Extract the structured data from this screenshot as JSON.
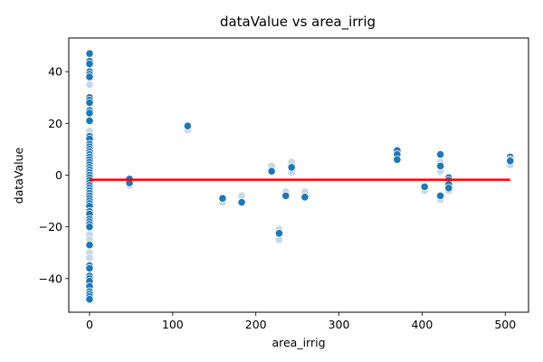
{
  "chart_data": {
    "type": "scatter",
    "title": "dataValue vs area_irrig",
    "xlabel": "area_irrig",
    "ylabel": "dataValue",
    "xlim": [
      -25,
      528
    ],
    "ylim": [
      -53,
      53
    ],
    "xticks": [
      0,
      100,
      200,
      300,
      400,
      500
    ],
    "yticks": [
      -40,
      -20,
      0,
      20,
      40
    ],
    "grid": false,
    "point_color": "#1f77b4",
    "faint_point_color": "#c6d9ea",
    "line_color": "#ff0000",
    "x0_values": [
      47,
      44,
      43,
      40,
      39,
      38,
      30,
      29,
      28,
      25,
      24,
      21,
      15,
      14,
      12,
      11,
      10,
      9,
      8,
      7,
      6,
      5,
      4,
      3,
      2,
      1,
      0,
      -1,
      -2,
      -3,
      -4,
      -5,
      -6,
      -7,
      -8,
      -9,
      -10,
      -11,
      -12,
      -14,
      -15,
      -17,
      -18,
      -19,
      -20,
      -27,
      -35,
      -36,
      -39,
      -40,
      -41,
      -43,
      -45,
      -46,
      -47,
      -48
    ],
    "points": [
      {
        "x": 48,
        "y": -1.5
      },
      {
        "x": 48,
        "y": -3
      },
      {
        "x": 118,
        "y": 19
      },
      {
        "x": 160,
        "y": -9
      },
      {
        "x": 183,
        "y": -10.5
      },
      {
        "x": 219,
        "y": 1.5
      },
      {
        "x": 228,
        "y": -22.5
      },
      {
        "x": 236,
        "y": -8
      },
      {
        "x": 243,
        "y": 3
      },
      {
        "x": 259,
        "y": -8.5
      },
      {
        "x": 370,
        "y": 9.5
      },
      {
        "x": 370,
        "y": 8
      },
      {
        "x": 370,
        "y": 6
      },
      {
        "x": 403,
        "y": -4.5
      },
      {
        "x": 422,
        "y": 8
      },
      {
        "x": 422,
        "y": 3.5
      },
      {
        "x": 422,
        "y": -8
      },
      {
        "x": 432,
        "y": -1
      },
      {
        "x": 432,
        "y": -2
      },
      {
        "x": 432,
        "y": -3.5
      },
      {
        "x": 432,
        "y": -5
      },
      {
        "x": 506,
        "y": 7
      },
      {
        "x": 506,
        "y": 6
      },
      {
        "x": 506,
        "y": 5.5
      }
    ],
    "faint_points": [
      {
        "x": 48,
        "y": -4
      },
      {
        "x": 118,
        "y": 17.5
      },
      {
        "x": 160,
        "y": -10.5
      },
      {
        "x": 183,
        "y": -8
      },
      {
        "x": 219,
        "y": 3.5
      },
      {
        "x": 228,
        "y": -21
      },
      {
        "x": 228,
        "y": -25
      },
      {
        "x": 236,
        "y": -6.5
      },
      {
        "x": 243,
        "y": 5
      },
      {
        "x": 243,
        "y": 1
      },
      {
        "x": 259,
        "y": -6.5
      },
      {
        "x": 403,
        "y": -6
      },
      {
        "x": 422,
        "y": 5
      },
      {
        "x": 422,
        "y": 1.5
      },
      {
        "x": 422,
        "y": -9.5
      },
      {
        "x": 432,
        "y": -6
      },
      {
        "x": 506,
        "y": 4
      },
      {
        "x": 0,
        "y": -23
      },
      {
        "x": 0,
        "y": -25
      },
      {
        "x": 0,
        "y": -30
      },
      {
        "x": 0,
        "y": -32
      },
      {
        "x": 0,
        "y": 17
      },
      {
        "x": 0,
        "y": 35
      }
    ],
    "regression_line": {
      "x": [
        0,
        506
      ],
      "y": [
        -1.8,
        -1.8
      ]
    }
  }
}
